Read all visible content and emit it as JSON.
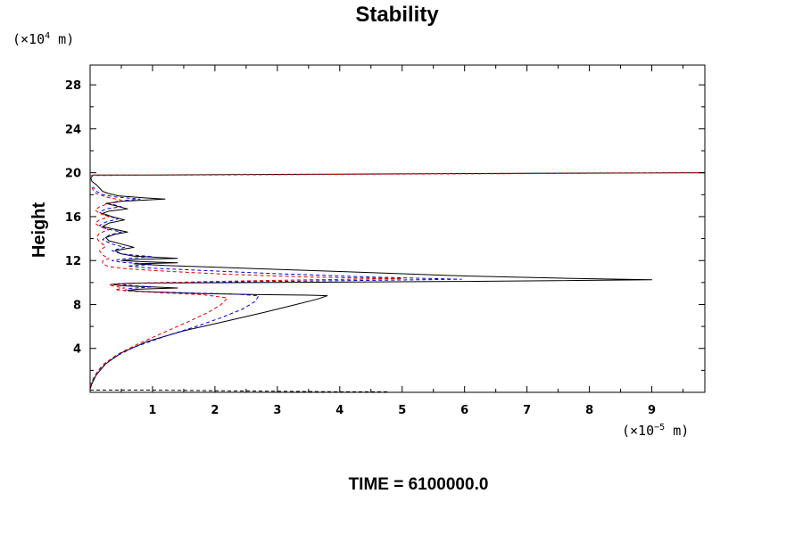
{
  "chart_data": {
    "type": "line",
    "title": "Stability",
    "ylabel": "Height",
    "xlabel": "",
    "y_unit_prefix": "(×10",
    "y_unit_exp": "4",
    "y_unit_suffix": " m)",
    "x_unit_prefix": "(×10",
    "x_unit_exp": "−5",
    "x_unit_suffix": " m)",
    "footer": "TIME = 6100000.0",
    "xlim": [
      0,
      9.85
    ],
    "ylim": [
      0,
      29.8
    ],
    "x_ticks": [
      1,
      2,
      3,
      4,
      5,
      6,
      7,
      8,
      9
    ],
    "x_tick_labels": [
      "1",
      "2",
      "3",
      "4",
      "5",
      "6",
      "7",
      "8",
      "9"
    ],
    "y_ticks": [
      4,
      8,
      12,
      16,
      20,
      24,
      28
    ],
    "y_tick_labels": [
      "4",
      "8",
      "12",
      "16",
      "20",
      "24",
      "28"
    ],
    "colors": {
      "black": "#000000",
      "blue": "#0000cc",
      "red": "#dd0000"
    },
    "series": [
      {
        "name": "black",
        "style": "solid",
        "points": [
          [
            0,
            0.3
          ],
          [
            0.03,
            0.8
          ],
          [
            0.1,
            1.6
          ],
          [
            0.25,
            2.6
          ],
          [
            0.5,
            3.6
          ],
          [
            0.9,
            4.6
          ],
          [
            1.5,
            5.6
          ],
          [
            2.2,
            6.5
          ],
          [
            2.8,
            7.3
          ],
          [
            3.3,
            8.0
          ],
          [
            3.65,
            8.5
          ],
          [
            3.8,
            8.8
          ],
          [
            3.5,
            8.85
          ],
          [
            2.7,
            8.9
          ],
          [
            1.8,
            9.0
          ],
          [
            1.2,
            9.1
          ],
          [
            0.8,
            9.2
          ],
          [
            0.6,
            9.3
          ],
          [
            0.8,
            9.4
          ],
          [
            1.4,
            9.5
          ],
          [
            1.0,
            9.6
          ],
          [
            0.5,
            9.7
          ],
          [
            0.35,
            9.85
          ],
          [
            0.7,
            9.95
          ],
          [
            3.0,
            10.0
          ],
          [
            6.0,
            10.1
          ],
          [
            9.0,
            10.25
          ],
          [
            7.5,
            10.4
          ],
          [
            6.0,
            10.6
          ],
          [
            5.0,
            10.8
          ],
          [
            4.0,
            11.0
          ],
          [
            3.0,
            11.2
          ],
          [
            2.0,
            11.4
          ],
          [
            1.2,
            11.55
          ],
          [
            0.7,
            11.7
          ],
          [
            1.4,
            11.8
          ],
          [
            0.8,
            11.9
          ],
          [
            0.5,
            12.0
          ],
          [
            0.7,
            12.1
          ],
          [
            1.4,
            12.2
          ],
          [
            0.7,
            12.4
          ],
          [
            0.5,
            12.6
          ],
          [
            0.4,
            12.9
          ],
          [
            0.7,
            13.2
          ],
          [
            0.5,
            13.5
          ],
          [
            0.3,
            13.8
          ],
          [
            0.25,
            14.1
          ],
          [
            0.4,
            14.4
          ],
          [
            0.6,
            14.6
          ],
          [
            0.35,
            14.9
          ],
          [
            0.2,
            15.1
          ],
          [
            0.3,
            15.4
          ],
          [
            0.55,
            15.7
          ],
          [
            0.35,
            16.0
          ],
          [
            0.2,
            16.3
          ],
          [
            0.3,
            16.5
          ],
          [
            0.6,
            16.7
          ],
          [
            0.4,
            17.0
          ],
          [
            0.25,
            17.2
          ],
          [
            0.5,
            17.4
          ],
          [
            1.2,
            17.6
          ],
          [
            0.9,
            17.7
          ],
          [
            0.45,
            17.9
          ],
          [
            0.3,
            18.1
          ],
          [
            0.2,
            18.3
          ],
          [
            0.15,
            18.6
          ],
          [
            0.1,
            18.9
          ],
          [
            0.03,
            19.2
          ],
          [
            0.01,
            19.5
          ],
          [
            0.05,
            19.8
          ],
          [
            1.0,
            19.8
          ],
          [
            3.0,
            19.85
          ],
          [
            5.0,
            19.9
          ],
          [
            7.0,
            19.95
          ],
          [
            9.85,
            20.0
          ]
        ]
      },
      {
        "name": "blue",
        "style": "dashed",
        "points": [
          [
            0,
            0.5
          ],
          [
            0.05,
            1.2
          ],
          [
            0.15,
            2.1
          ],
          [
            0.35,
            3.1
          ],
          [
            0.7,
            4.1
          ],
          [
            1.2,
            5.1
          ],
          [
            1.7,
            6.0
          ],
          [
            2.1,
            6.8
          ],
          [
            2.45,
            7.6
          ],
          [
            2.65,
            8.3
          ],
          [
            2.7,
            8.8
          ],
          [
            2.3,
            8.95
          ],
          [
            1.6,
            9.05
          ],
          [
            1.0,
            9.15
          ],
          [
            0.55,
            9.25
          ],
          [
            0.6,
            9.45
          ],
          [
            1.0,
            9.6
          ],
          [
            0.6,
            9.75
          ],
          [
            0.45,
            9.9
          ],
          [
            1.2,
            10.0
          ],
          [
            3.0,
            10.1
          ],
          [
            5.95,
            10.3
          ],
          [
            4.5,
            10.5
          ],
          [
            3.0,
            10.8
          ],
          [
            1.8,
            11.1
          ],
          [
            1.0,
            11.3
          ],
          [
            0.6,
            11.5
          ],
          [
            1.0,
            11.65
          ],
          [
            0.5,
            11.85
          ],
          [
            0.35,
            12.0
          ],
          [
            0.6,
            12.2
          ],
          [
            1.0,
            12.35
          ],
          [
            0.5,
            12.6
          ],
          [
            0.35,
            12.9
          ],
          [
            0.55,
            13.2
          ],
          [
            0.35,
            13.5
          ],
          [
            0.2,
            13.9
          ],
          [
            0.3,
            14.3
          ],
          [
            0.5,
            14.6
          ],
          [
            0.25,
            14.9
          ],
          [
            0.15,
            15.2
          ],
          [
            0.25,
            15.5
          ],
          [
            0.45,
            15.8
          ],
          [
            0.25,
            16.1
          ],
          [
            0.15,
            16.4
          ],
          [
            0.25,
            16.7
          ],
          [
            0.5,
            16.9
          ],
          [
            0.3,
            17.2
          ],
          [
            0.6,
            17.5
          ],
          [
            0.8,
            17.6
          ],
          [
            0.4,
            17.8
          ],
          [
            0.2,
            18.0
          ],
          [
            0.1,
            18.3
          ],
          [
            0.05,
            18.7
          ]
        ]
      },
      {
        "name": "red",
        "style": "dashed",
        "points": [
          [
            0,
            0.6
          ],
          [
            0.07,
            1.5
          ],
          [
            0.2,
            2.5
          ],
          [
            0.45,
            3.5
          ],
          [
            0.8,
            4.5
          ],
          [
            1.2,
            5.5
          ],
          [
            1.6,
            6.5
          ],
          [
            1.9,
            7.3
          ],
          [
            2.1,
            8.0
          ],
          [
            2.2,
            8.6
          ],
          [
            1.8,
            8.9
          ],
          [
            1.2,
            9.05
          ],
          [
            0.7,
            9.2
          ],
          [
            0.4,
            9.35
          ],
          [
            0.55,
            9.5
          ],
          [
            0.4,
            9.65
          ],
          [
            0.3,
            9.8
          ],
          [
            0.8,
            9.95
          ],
          [
            2.0,
            10.1
          ],
          [
            3.5,
            10.25
          ],
          [
            5.0,
            10.35
          ],
          [
            3.5,
            10.5
          ],
          [
            2.2,
            10.75
          ],
          [
            1.3,
            11.0
          ],
          [
            0.6,
            11.25
          ],
          [
            0.3,
            11.45
          ],
          [
            0.2,
            11.7
          ],
          [
            0.2,
            11.95
          ],
          [
            0.3,
            12.2
          ],
          [
            0.2,
            12.5
          ],
          [
            0.15,
            12.9
          ],
          [
            0.25,
            13.3
          ],
          [
            0.15,
            13.7
          ],
          [
            0.1,
            14.1
          ],
          [
            0.15,
            14.5
          ],
          [
            0.3,
            14.8
          ],
          [
            0.15,
            15.1
          ],
          [
            0.08,
            15.4
          ],
          [
            0.15,
            15.7
          ],
          [
            0.3,
            16.0
          ],
          [
            0.15,
            16.3
          ],
          [
            0.08,
            16.6
          ],
          [
            0.15,
            16.9
          ],
          [
            0.3,
            17.2
          ],
          [
            0.5,
            17.5
          ],
          [
            0.25,
            17.8
          ],
          [
            0.1,
            18.1
          ],
          [
            0.05,
            18.4
          ],
          [
            0.02,
            18.8
          ]
        ]
      },
      {
        "name": "red-top-boundary",
        "style": "dashed",
        "points": [
          [
            0,
            19.75
          ],
          [
            2.0,
            19.8
          ],
          [
            4.0,
            19.85
          ],
          [
            6.0,
            19.9
          ],
          [
            8.0,
            19.95
          ],
          [
            9.85,
            20.0
          ]
        ]
      },
      {
        "name": "bottom-boundary",
        "style": "dashed",
        "points": [
          [
            0,
            0.2
          ],
          [
            1.0,
            0.2
          ],
          [
            2.0,
            0.15
          ],
          [
            3.0,
            0.1
          ],
          [
            4.0,
            0.05
          ],
          [
            4.8,
            0.05
          ]
        ]
      }
    ]
  }
}
